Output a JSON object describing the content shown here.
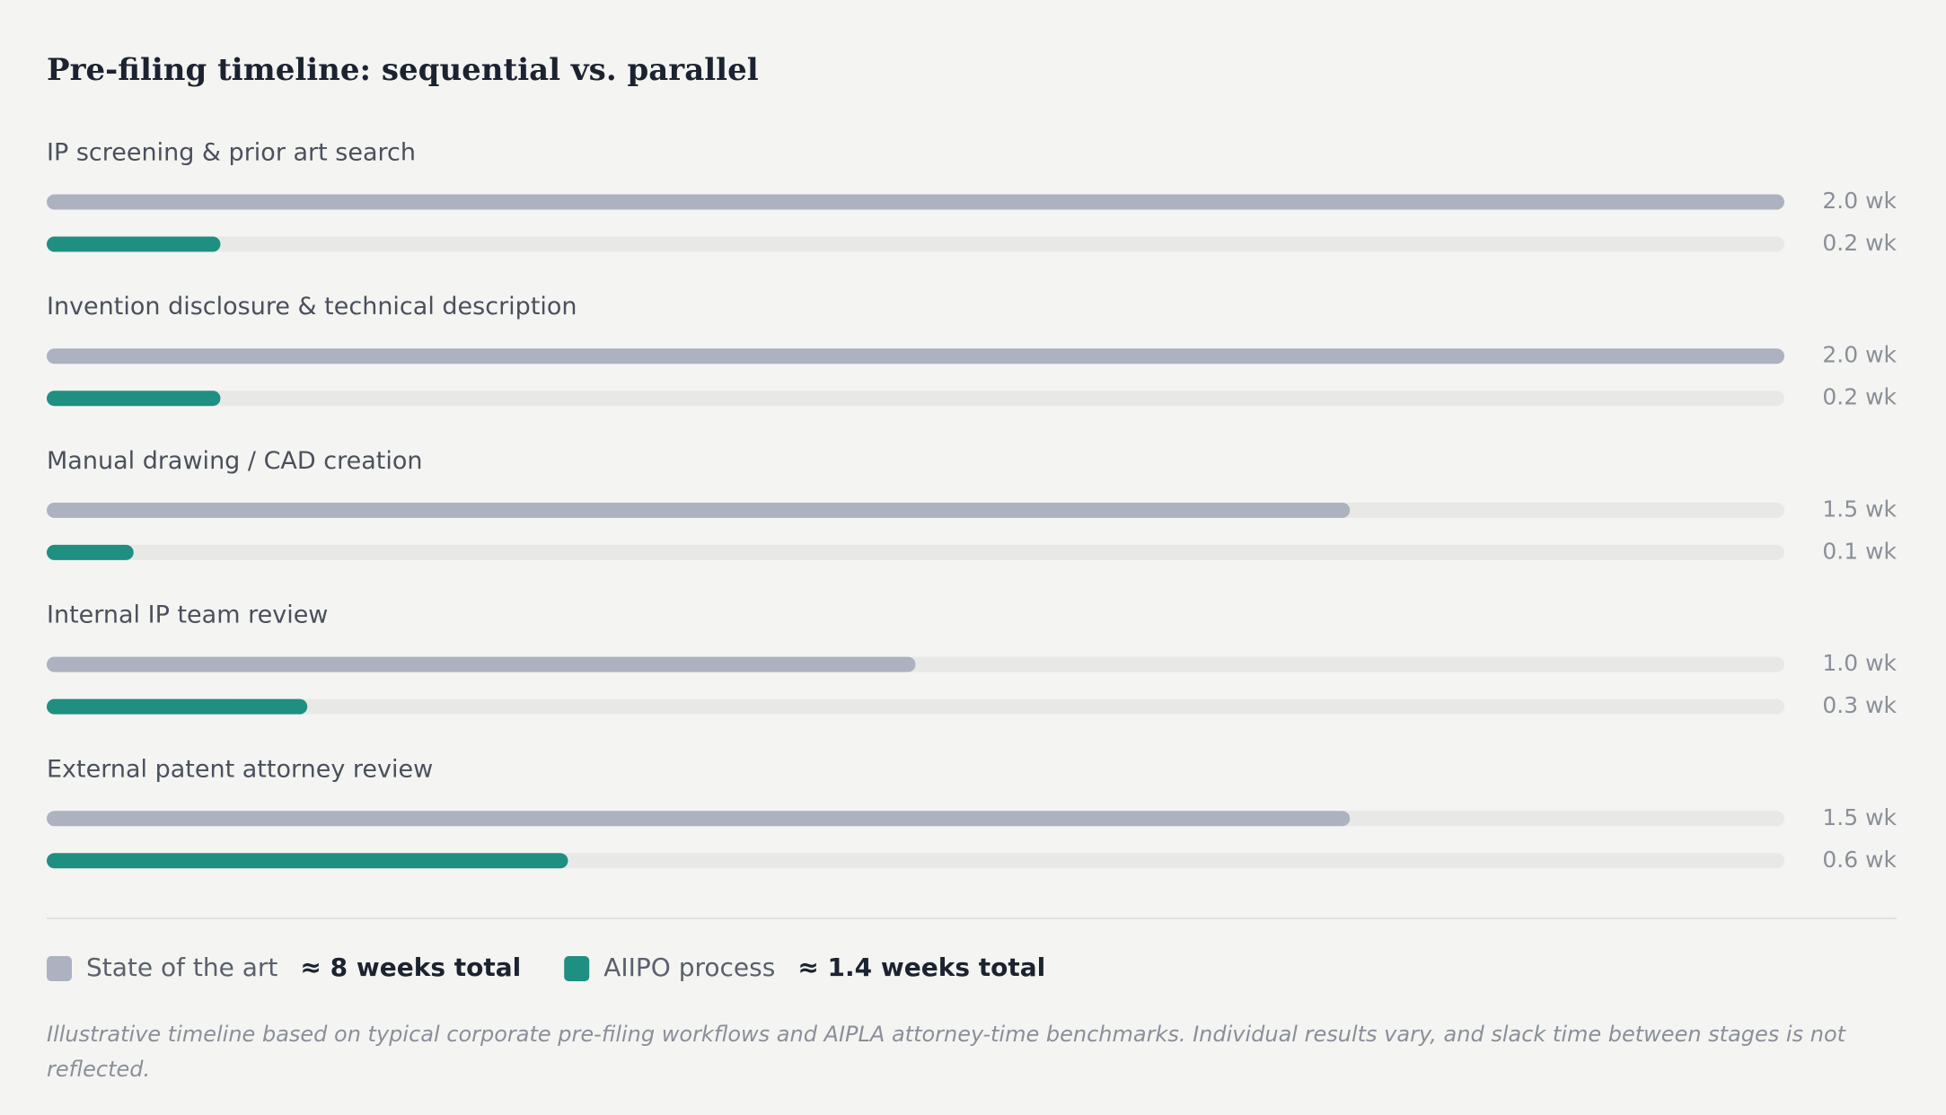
{
  "chart_data": {
    "type": "bar",
    "orientation": "horizontal",
    "title": "Pre-filing timeline: sequential vs. parallel",
    "categories": [
      "IP screening & prior art search",
      "Invention disclosure & technical description",
      "Manual drawing / CAD creation",
      "Internal IP team review",
      "External patent attorney review"
    ],
    "series": [
      {
        "name": "State of the art",
        "color": "#adb2c0",
        "values": [
          2.0,
          2.0,
          1.5,
          1.0,
          1.5
        ],
        "value_labels": [
          "2.0 wk",
          "2.0 wk",
          "1.5 wk",
          "1.0 wk",
          "1.5 wk"
        ],
        "total_label": "≈ 8 weeks total"
      },
      {
        "name": "AIIPO process",
        "color": "#1f8f82",
        "values": [
          0.2,
          0.2,
          0.1,
          0.3,
          0.6
        ],
        "value_labels": [
          "0.2 wk",
          "0.2 wk",
          "0.1 wk",
          "0.3 wk",
          "0.6 wk"
        ],
        "total_label": "≈ 1.4 weeks total"
      }
    ],
    "xlim": [
      0,
      2
    ],
    "footnote": "Illustrative timeline based on typical corporate pre-filing workflows and AIPLA attorney-time benchmarks. Individual results vary, and slack time between stages is not reflected."
  }
}
